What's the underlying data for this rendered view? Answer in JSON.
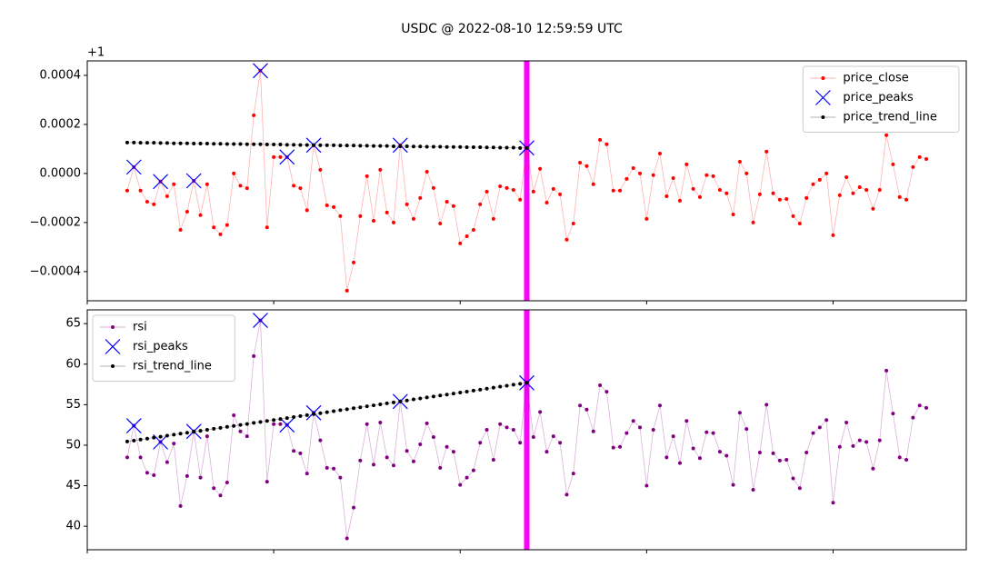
{
  "chart_data": [
    {
      "type": "line",
      "title": "USDC @ 2022-08-10 12:59:59 UTC",
      "offset_text": "+1",
      "xlim": [
        -6,
        126
      ],
      "xticks": [
        -6,
        22,
        50,
        78,
        106
      ],
      "ylim": [
        -0.000519,
        0.000459
      ],
      "yticks": [
        {
          "value": -0.0004,
          "label": "−0.0004"
        },
        {
          "value": -0.0002,
          "label": "−0.0002"
        },
        {
          "value": 0,
          "label": "0.0000"
        },
        0.0002,
        0.0004
      ],
      "vline": 60,
      "vline_color": "#ff00ff",
      "legend": "upper right",
      "series": [
        {
          "name": "price_close",
          "color": "#ff0000",
          "marker": "o",
          "values": [
            -7e-05,
            2.6e-05,
            -7e-05,
            -0.000115,
            -0.000126,
            -3.3e-05,
            -9.3e-05,
            -4.4e-05,
            -0.00023,
            -0.000156,
            -3e-05,
            -0.00017,
            -4.4e-05,
            -0.00022,
            -0.000248,
            -0.00021,
            0,
            -5e-05,
            -6e-05,
            0.000237,
            0.000419,
            -0.00022,
            6.7e-05,
            6.7e-05,
            6.7e-05,
            -5e-05,
            -6e-05,
            -0.00015,
            0.000115,
            1.5e-05,
            -0.00013,
            -0.000137,
            -0.000174,
            -0.000478,
            -0.000363,
            -0.000174,
            -1.1e-05,
            -0.000193,
            1.5e-05,
            -0.000159,
            -0.0002,
            0.000115,
            -0.000126,
            -0.000185,
            -0.0001,
            7e-06,
            -5.9e-05,
            -0.000204,
            -0.000115,
            -0.000133,
            -0.000285,
            -0.000256,
            -0.00023,
            -0.000126,
            -7.4e-05,
            -0.000185,
            -5.2e-05,
            -5.9e-05,
            -6.7e-05,
            -0.000107,
            0.000104,
            -7.4e-05,
            1.9e-05,
            -0.000119,
            -6.3e-05,
            -8.5e-05,
            -0.00027,
            -0.000204,
            4.4e-05,
            3e-05,
            -4.4e-05,
            0.000137,
            0.000119,
            -7e-05,
            -7e-05,
            -2.2e-05,
            2.2e-05,
            0,
            -0.000185,
            -7e-06,
            8.1e-05,
            -9.3e-05,
            -1.9e-05,
            -0.000111,
            3.7e-05,
            -6.3e-05,
            -9.6e-05,
            -7e-06,
            -1.1e-05,
            -6.7e-05,
            -8.1e-05,
            -0.000167,
            4.8e-05,
            0,
            -0.0002,
            -8.5e-05,
            8.9e-05,
            -8.1e-05,
            -0.000107,
            -0.000104,
            -0.000174,
            -0.000204,
            -0.0001,
            -4.4e-05,
            -2.6e-05,
            0,
            -0.000252,
            -8.9e-05,
            -1.5e-05,
            -8.1e-05,
            -5.6e-05,
            -6.7e-05,
            -0.000144,
            -6.7e-05,
            0.000156,
            3.7e-05,
            -9.6e-05,
            -0.000107,
            2.6e-05,
            6.7e-05,
            5.9e-05
          ]
        },
        {
          "name": "price_peaks",
          "color": "#0000ff",
          "marker": "x",
          "x": [
            1,
            5,
            10,
            20,
            24,
            28,
            41,
            60
          ],
          "values": [
            2.6e-05,
            -3.3e-05,
            -3e-05,
            0.000419,
            6.7e-05,
            0.000115,
            0.000115,
            0.000104
          ]
        },
        {
          "name": "price_trend_line",
          "color": "#000000",
          "marker": "o",
          "values": [
            0.000126,
            0.000126,
            0.000125,
            0.000125,
            0.000125,
            0.000124,
            0.000124,
            0.000123,
            0.000123,
            0.000123,
            0.000122,
            0.000122,
            0.000122,
            0.000121,
            0.000121,
            0.00012,
            0.00012,
            0.00012,
            0.000119,
            0.000119,
            0.000119,
            0.000118,
            0.000118,
            0.000118,
            0.000117,
            0.000117,
            0.000116,
            0.000116,
            0.000116,
            0.000115,
            0.000115,
            0.000115,
            0.000114,
            0.000114,
            0.000114,
            0.000113,
            0.000113,
            0.000112,
            0.000112,
            0.000112,
            0.000111,
            0.000111,
            0.000111,
            0.00011,
            0.00011,
            0.000109,
            0.000109,
            0.000109,
            0.000108,
            0.000108,
            0.000108,
            0.000107,
            0.000107,
            0.000107,
            0.000106,
            0.000106,
            0.000105,
            0.000105,
            0.000105,
            0.000104,
            0.000104
          ]
        }
      ]
    },
    {
      "type": "line",
      "xlim": [
        -6,
        126
      ],
      "xticks": [
        -6,
        22,
        50,
        78,
        106
      ],
      "ylim": [
        37.1,
        66.7
      ],
      "yticks": [
        40,
        45,
        50,
        55,
        60,
        65
      ],
      "vline": 60,
      "vline_color": "#ff00ff",
      "legend": "upper left",
      "series": [
        {
          "name": "rsi",
          "color": "#800080",
          "marker": "o",
          "values": [
            48.5,
            52.4,
            48.5,
            46.6,
            46.3,
            50.4,
            47.9,
            50.2,
            42.5,
            46.2,
            51.7,
            46.0,
            51.1,
            44.7,
            43.8,
            45.4,
            53.7,
            51.7,
            51.1,
            61.0,
            65.4,
            45.5,
            52.6,
            52.6,
            52.5,
            49.3,
            49.0,
            46.5,
            54.0,
            50.6,
            47.2,
            47.1,
            46.0,
            38.5,
            42.3,
            48.1,
            52.6,
            47.6,
            52.8,
            48.5,
            47.5,
            55.4,
            49.3,
            48.0,
            50.1,
            52.7,
            51.0,
            47.2,
            49.8,
            49.2,
            45.1,
            46.0,
            46.9,
            50.3,
            51.9,
            48.2,
            52.6,
            52.2,
            51.9,
            50.3,
            57.7,
            51.0,
            54.1,
            49.2,
            51.1,
            50.3,
            43.9,
            46.5,
            54.9,
            54.4,
            51.7,
            57.4,
            56.6,
            49.7,
            49.8,
            51.5,
            53.0,
            52.2,
            45.0,
            51.9,
            54.9,
            48.5,
            51.1,
            47.8,
            53.0,
            49.6,
            48.4,
            51.6,
            51.5,
            49.2,
            48.7,
            45.1,
            54.0,
            52.0,
            44.5,
            49.1,
            55.0,
            49.0,
            48.1,
            48.2,
            45.9,
            44.7,
            49.1,
            51.5,
            52.2,
            53.1,
            42.9,
            49.8,
            52.8,
            49.9,
            50.6,
            50.4,
            47.1,
            50.6,
            59.2,
            53.9,
            48.5,
            48.2,
            53.4,
            54.9,
            54.6
          ]
        },
        {
          "name": "rsi_peaks",
          "color": "#0000ff",
          "marker": "x",
          "x": [
            1,
            5,
            10,
            20,
            24,
            28,
            41,
            60
          ],
          "values": [
            52.4,
            50.4,
            51.7,
            65.4,
            52.5,
            54.0,
            55.4,
            57.7
          ]
        },
        {
          "name": "rsi_trend_line",
          "color": "#000000",
          "marker": "o",
          "values": [
            50.45,
            50.57,
            50.69,
            50.81,
            50.93,
            51.05,
            51.17,
            51.3,
            51.42,
            51.54,
            51.66,
            51.78,
            51.9,
            52.02,
            52.14,
            52.26,
            52.38,
            52.5,
            52.62,
            52.75,
            52.87,
            52.99,
            53.11,
            53.23,
            53.35,
            53.47,
            53.59,
            53.71,
            53.83,
            53.95,
            54.07,
            54.2,
            54.32,
            54.44,
            54.56,
            54.68,
            54.8,
            54.92,
            55.04,
            55.16,
            55.28,
            55.4,
            55.52,
            55.65,
            55.77,
            55.89,
            56.01,
            56.13,
            56.25,
            56.37,
            56.49,
            56.61,
            56.73,
            56.85,
            56.97,
            57.1,
            57.22,
            57.34,
            57.46,
            57.58,
            57.7
          ]
        }
      ]
    }
  ]
}
